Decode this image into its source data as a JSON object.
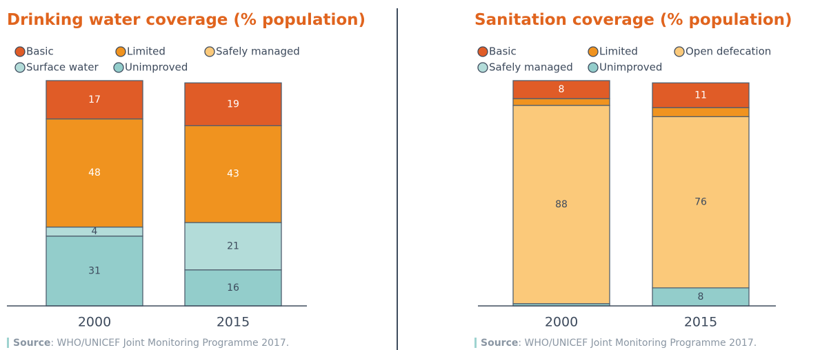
{
  "chart_data": [
    {
      "type": "stacked_bar",
      "title": "Drinking water coverage (% population)",
      "categories": [
        "2000",
        "2015"
      ],
      "series": [
        {
          "name": "Basic",
          "color": "#e05c27",
          "label_color": "#ffffff",
          "values": [
            17,
            19
          ]
        },
        {
          "name": "Limited",
          "color": "#f0931f",
          "label_color": "#ffffff",
          "values": [
            48,
            43
          ]
        },
        {
          "name": "Safely managed",
          "color": "#fbc97a",
          "label_color": "#3d4a5c",
          "values": [
            null,
            null
          ]
        },
        {
          "name": "Surface water",
          "color": "#b3dcd9",
          "label_color": "#3d4a5c",
          "values": [
            4,
            21
          ]
        },
        {
          "name": "Unimproved",
          "color": "#93cdcb",
          "label_color": "#3d4a5c",
          "values": [
            31,
            16
          ]
        }
      ],
      "ylim": [
        0,
        100
      ],
      "source_label": "Source",
      "source_text": ": WHO/UNICEF Joint Monitoring Programme 2017."
    },
    {
      "type": "stacked_bar",
      "title": "Sanitation coverage (% population)",
      "categories": [
        "2000",
        "2015"
      ],
      "series": [
        {
          "name": "Basic",
          "color": "#e05c27",
          "label_color": "#ffffff",
          "values": [
            8,
            11
          ]
        },
        {
          "name": "Limited",
          "color": "#f0931f",
          "label_color": "#ffffff",
          "values": [
            3,
            4
          ],
          "value_labels": [
            null,
            null
          ]
        },
        {
          "name": "Open defecation",
          "color": "#fbc97a",
          "label_color": "#3d4a5c",
          "values": [
            88,
            76
          ]
        },
        {
          "name": "Safely managed",
          "color": "#b3dcd9",
          "label_color": "#3d4a5c",
          "values": [
            null,
            null
          ]
        },
        {
          "name": "Unimproved",
          "color": "#93cdcb",
          "label_color": "#3d4a5c",
          "values": [
            1,
            8
          ],
          "value_labels": [
            null,
            "8"
          ]
        }
      ],
      "ylim": [
        0,
        100
      ],
      "source_label": "Source",
      "source_text": ": WHO/UNICEF Joint Monitoring Programme 2017."
    }
  ]
}
